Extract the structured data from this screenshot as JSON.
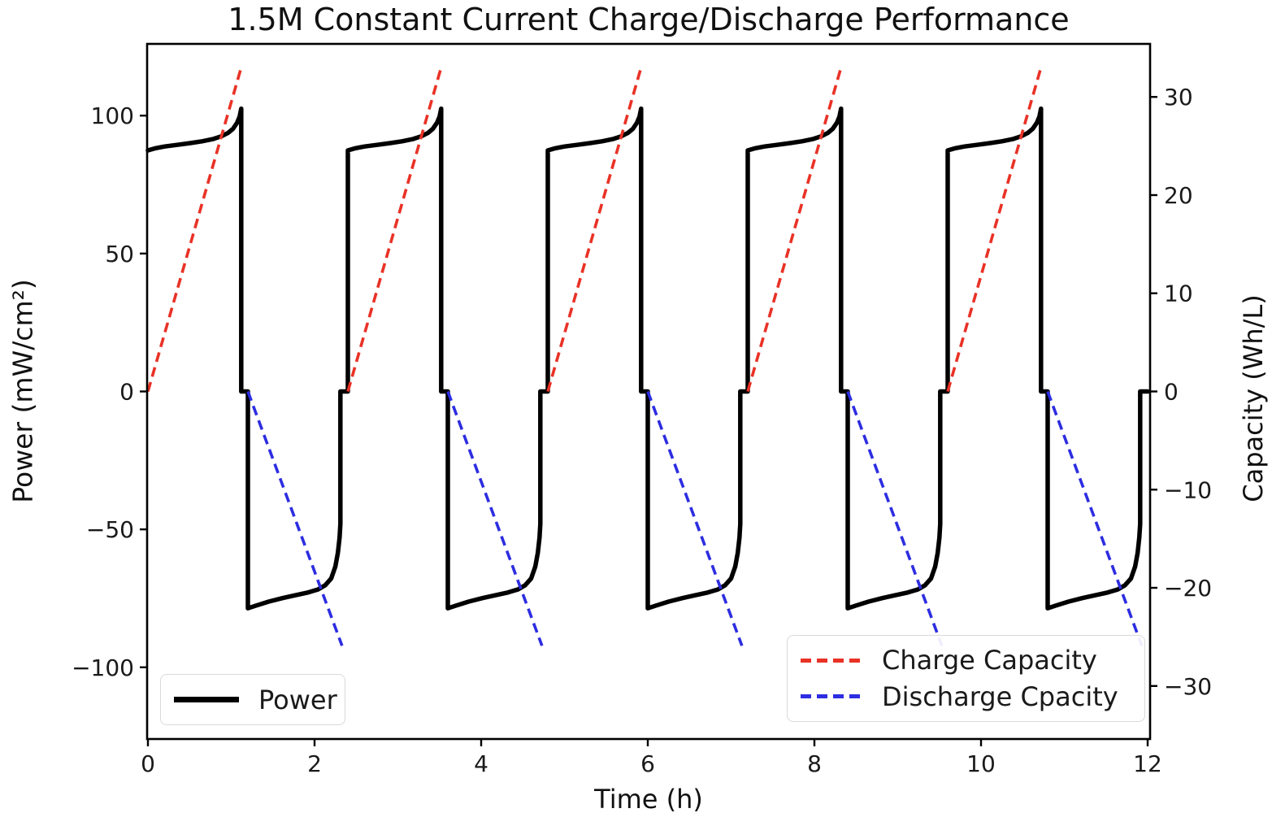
{
  "chart_data": {
    "type": "line",
    "title": "1.5M Constant Current Charge/Discharge Performance",
    "xlabel": "Time (h)",
    "ylabel_left": "Power (mW/cm²)",
    "ylabel_right": "Capacity (Wh/L)",
    "xlim": [
      0,
      12
    ],
    "ylim_left": [
      -126,
      126
    ],
    "ylim_right": [
      -35.4,
      35.4
    ],
    "grid": false,
    "x_ticks": {
      "values": [
        0,
        2,
        4,
        6,
        8,
        10,
        12
      ],
      "labels": [
        "0",
        "2",
        "4",
        "6",
        "8",
        "10",
        "12"
      ]
    },
    "y_ticks_left": {
      "values": [
        100,
        50,
        0,
        -50,
        -100
      ],
      "labels": [
        "100",
        "50",
        "0",
        "−50",
        "−100"
      ]
    },
    "y_ticks_right": {
      "values": [
        30,
        20,
        10,
        0,
        -10,
        -20,
        -30
      ],
      "labels": [
        "30",
        "20",
        "10",
        "0",
        "−10",
        "−20",
        "−30"
      ]
    },
    "legend_power": {
      "position": "lower left",
      "label": "Power"
    },
    "legend_capacity": {
      "position": "lower right",
      "charge_label": "Charge Capacity",
      "discharge_label": "Discharge Cpacity"
    },
    "colors": {
      "power": "#000000",
      "charge_capacity": "#e93226",
      "discharge_capacity": "#2d2de1",
      "axis": "#000000",
      "text": "#1a1a1a",
      "legend_border": "#d9d9d9"
    },
    "cycles": {
      "count": 5,
      "period_h": 2.4,
      "charge_start_h": 0.0,
      "charge_end_h": 1.12,
      "rest1_end_h": 1.2,
      "discharge_end_h": 2.31,
      "rest2_end_h": 2.4,
      "rest_power": 0,
      "charge_power_profile": [
        [
          0.0,
          87.4
        ],
        [
          0.08,
          88.1
        ],
        [
          0.2,
          88.8
        ],
        [
          0.35,
          89.4
        ],
        [
          0.5,
          90.0
        ],
        [
          0.65,
          90.7
        ],
        [
          0.78,
          91.5
        ],
        [
          0.88,
          92.5
        ],
        [
          0.96,
          93.7
        ],
        [
          1.02,
          95.2
        ],
        [
          1.07,
          97.4
        ],
        [
          1.1,
          99.6
        ],
        [
          1.12,
          102.5
        ]
      ],
      "discharge_power_profile": [
        [
          0.0,
          -78.6
        ],
        [
          0.1,
          -77.6
        ],
        [
          0.25,
          -76.2
        ],
        [
          0.42,
          -74.9
        ],
        [
          0.58,
          -73.8
        ],
        [
          0.72,
          -72.9
        ],
        [
          0.84,
          -71.8
        ],
        [
          0.93,
          -70.2
        ],
        [
          1.0,
          -67.8
        ],
        [
          1.05,
          -63.5
        ],
        [
          1.08,
          -58.5
        ],
        [
          1.1,
          -53.0
        ],
        [
          1.11,
          -48.0
        ]
      ],
      "charge_capacity_whl_range": [
        0,
        33
      ],
      "discharge_capacity_whl_range": [
        0,
        -25.9
      ]
    }
  }
}
